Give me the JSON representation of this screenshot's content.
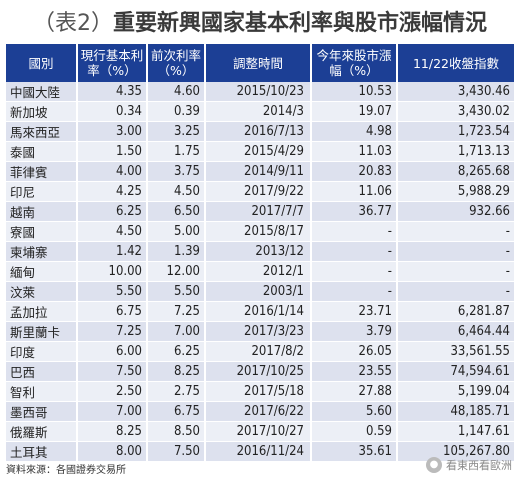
{
  "title": {
    "prefix": "（表2）",
    "text": "重要新興國家基本利率與股市漲幅情況"
  },
  "headers": {
    "country": "國別",
    "current_rate": "現行基本利率（%）",
    "previous_rate": "前次利率（%）",
    "adjust_time": "調整時間",
    "stock_change": "今年來股市漲幅（%）",
    "close_index": "11/22收盤指數"
  },
  "rows": [
    {
      "country": "中國大陸",
      "current_rate": "4.35",
      "previous_rate": "4.60",
      "adjust_time": "2015/10/23",
      "stock_change": "10.53",
      "close_index": "3,430.46"
    },
    {
      "country": "新加坡",
      "current_rate": "0.34",
      "previous_rate": "0.39",
      "adjust_time": "2014/3",
      "stock_change": "19.07",
      "close_index": "3,430.02"
    },
    {
      "country": "馬來西亞",
      "current_rate": "3.00",
      "previous_rate": "3.25",
      "adjust_time": "2016/7/13",
      "stock_change": "4.98",
      "close_index": "1,723.54"
    },
    {
      "country": "泰國",
      "current_rate": "1.50",
      "previous_rate": "1.75",
      "adjust_time": "2015/4/29",
      "stock_change": "11.03",
      "close_index": "1,713.13"
    },
    {
      "country": "菲律賓",
      "current_rate": "4.00",
      "previous_rate": "3.75",
      "adjust_time": "2014/9/11",
      "stock_change": "20.83",
      "close_index": "8,265.68"
    },
    {
      "country": "印尼",
      "current_rate": "4.25",
      "previous_rate": "4.50",
      "adjust_time": "2017/9/22",
      "stock_change": "11.06",
      "close_index": "5,988.29"
    },
    {
      "country": "越南",
      "current_rate": "6.25",
      "previous_rate": "6.50",
      "adjust_time": "2017/7/7",
      "stock_change": "36.77",
      "close_index": "932.66"
    },
    {
      "country": "寮國",
      "current_rate": "4.50",
      "previous_rate": "5.00",
      "adjust_time": "2015/8/17",
      "stock_change": "-",
      "close_index": "-"
    },
    {
      "country": "柬埔寨",
      "current_rate": "1.42",
      "previous_rate": "1.39",
      "adjust_time": "2013/12",
      "stock_change": "-",
      "close_index": "-"
    },
    {
      "country": "緬甸",
      "current_rate": "10.00",
      "previous_rate": "12.00",
      "adjust_time": "2012/1",
      "stock_change": "-",
      "close_index": "-"
    },
    {
      "country": "汶萊",
      "current_rate": "5.50",
      "previous_rate": "5.50",
      "adjust_time": "2003/1",
      "stock_change": "-",
      "close_index": "-"
    },
    {
      "country": "孟加拉",
      "current_rate": "6.75",
      "previous_rate": "7.25",
      "adjust_time": "2016/1/14",
      "stock_change": "23.71",
      "close_index": "6,281.87"
    },
    {
      "country": "斯里蘭卡",
      "current_rate": "7.25",
      "previous_rate": "7.00",
      "adjust_time": "2017/3/23",
      "stock_change": "3.79",
      "close_index": "6,464.44"
    },
    {
      "country": "印度",
      "current_rate": "6.00",
      "previous_rate": "6.25",
      "adjust_time": "2017/8/2",
      "stock_change": "26.05",
      "close_index": "33,561.55"
    },
    {
      "country": "巴西",
      "current_rate": "7.50",
      "previous_rate": "8.25",
      "adjust_time": "2017/10/25",
      "stock_change": "23.55",
      "close_index": "74,594.61"
    },
    {
      "country": "智利",
      "current_rate": "2.50",
      "previous_rate": "2.75",
      "adjust_time": "2017/5/18",
      "stock_change": "27.88",
      "close_index": "5,199.04"
    },
    {
      "country": "墨西哥",
      "current_rate": "7.00",
      "previous_rate": "6.75",
      "adjust_time": "2017/6/22",
      "stock_change": "5.60",
      "close_index": "48,185.71"
    },
    {
      "country": "俄羅斯",
      "current_rate": "8.25",
      "previous_rate": "8.50",
      "adjust_time": "2017/10/27",
      "stock_change": "0.59",
      "close_index": "1,147.61"
    },
    {
      "country": "土耳其",
      "current_rate": "8.00",
      "previous_rate": "7.50",
      "adjust_time": "2016/11/24",
      "stock_change": "35.61",
      "close_index": "105,267.80"
    }
  ],
  "source": "資料來源：各國證券交易所",
  "watermark": {
    "logo_icon": "wechat-logo-icon",
    "text": "看東西看歐洲"
  },
  "colors": {
    "header_bg": "#1c3f95",
    "row_odd": "#dde1ee",
    "row_even": "#eceff6"
  }
}
